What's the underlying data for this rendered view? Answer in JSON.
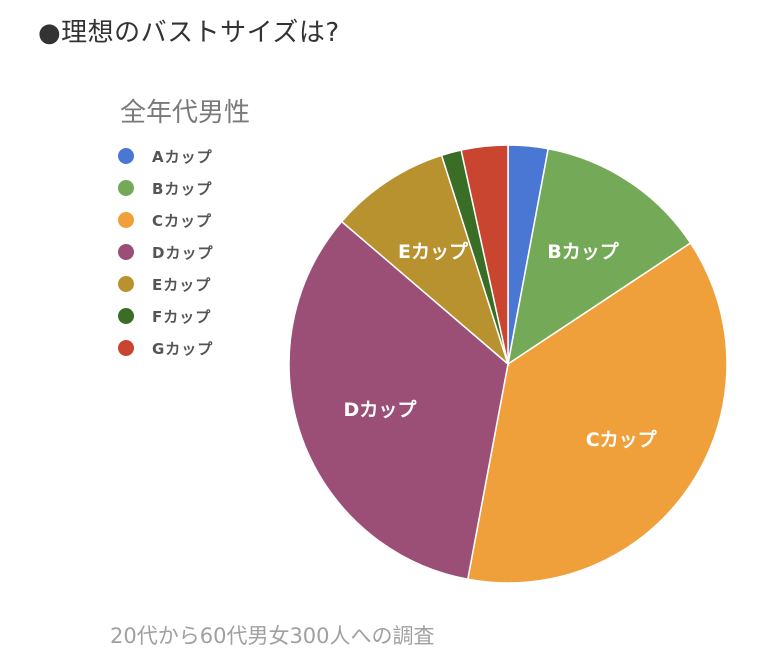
{
  "heading": "●理想のバストサイズは?",
  "footer": "20代から60代男女300人への調査",
  "chart_data": {
    "type": "pie",
    "title": "全年代男性",
    "legend_position": "left",
    "categories": [
      "Aカップ",
      "Bカップ",
      "Cカップ",
      "Dカップ",
      "Eカップ",
      "Fカップ",
      "Gカップ"
    ],
    "values": [
      3,
      13,
      38,
      34,
      9,
      1.5,
      3.5
    ],
    "colors": [
      "#4a77d4",
      "#74a957",
      "#f0a03a",
      "#9b4f76",
      "#b8922f",
      "#3a6e27",
      "#c9452f"
    ],
    "slice_labels": [
      "",
      "Bカップ",
      "Cカップ",
      "Dカップ",
      "Eカップ",
      "",
      ""
    ]
  }
}
